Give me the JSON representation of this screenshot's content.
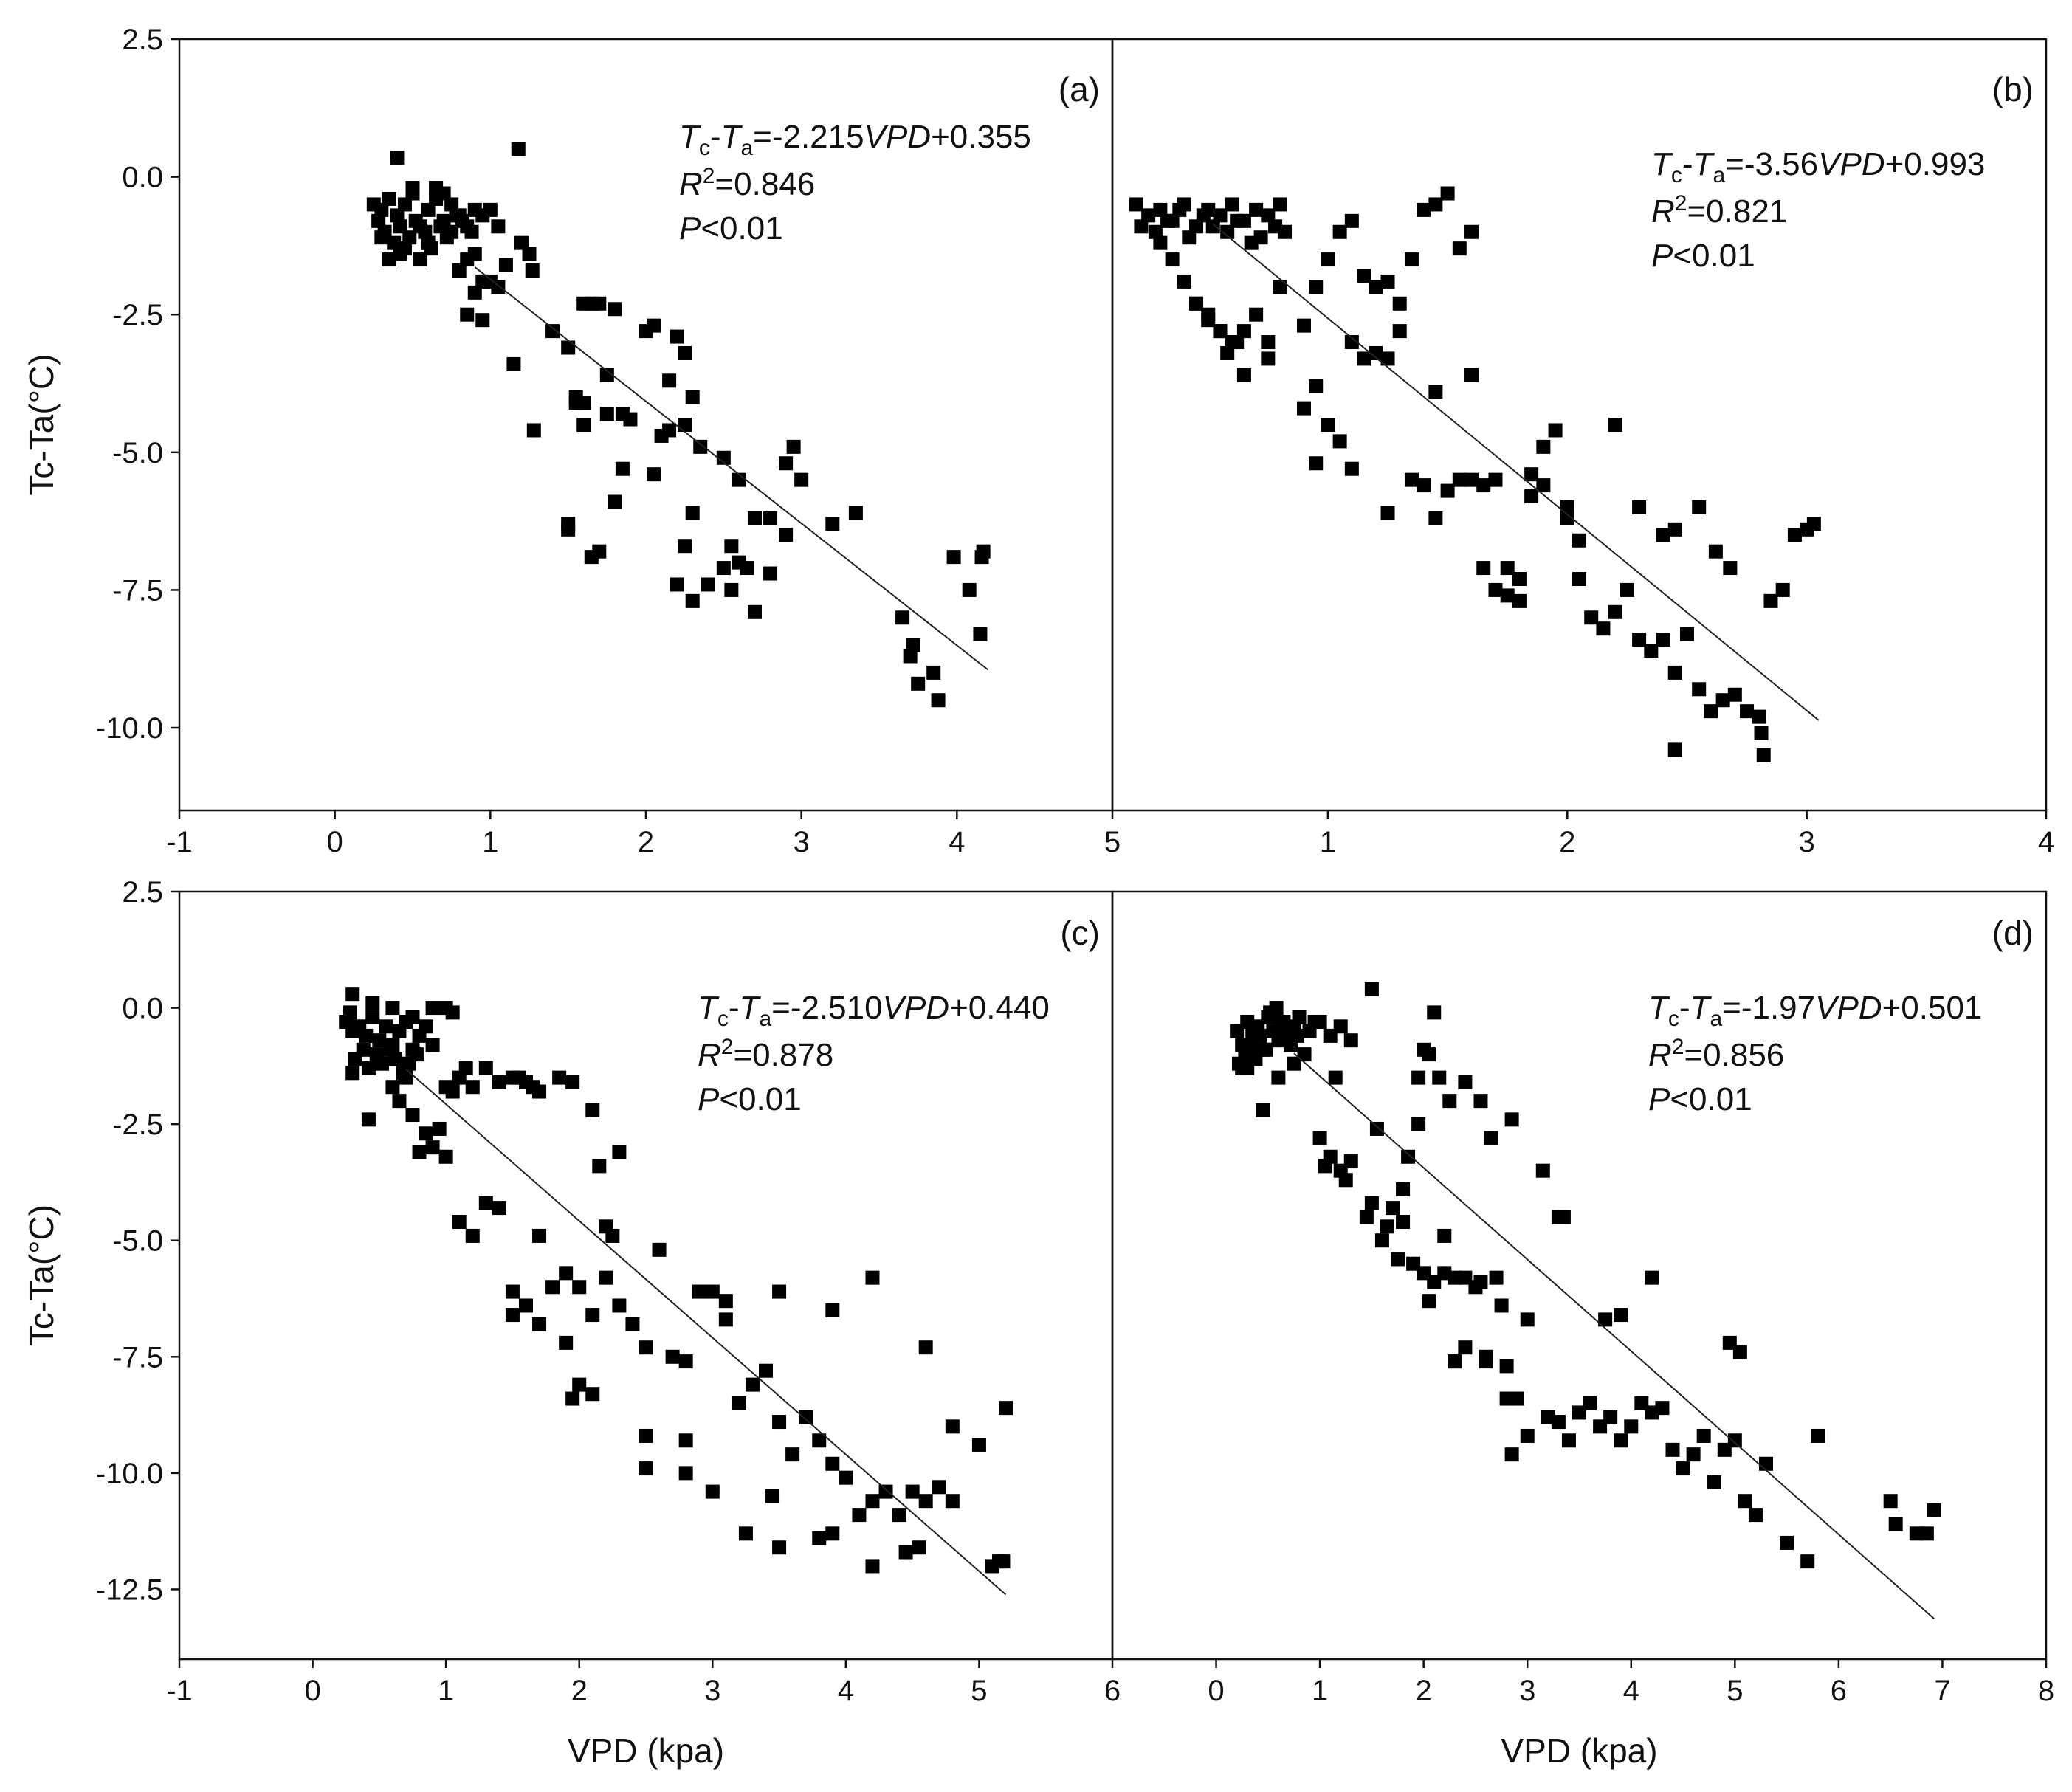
{
  "chart_data": [
    {
      "id": "a",
      "type": "scatter",
      "panel_label": "(a)",
      "equation": {
        "lhs_1": "T",
        "lhs_1_sub": "c",
        "minus": "-",
        "lhs_2": "T",
        "lhs_2_sub": "a",
        "rhs_1": "=-2.215",
        "rhs_var": "VPD",
        "rhs_2": "+0.355"
      },
      "r2": {
        "r": "R",
        "sup": "2",
        "value": "=0.846"
      },
      "p": {
        "p": "P",
        "value": "<0.01"
      },
      "xlim": [
        -1,
        5
      ],
      "ylim": [
        -11.5,
        2.5
      ],
      "xticks": [
        "-1",
        "0",
        "1",
        "2",
        "3",
        "4",
        "5"
      ],
      "yticks": [
        "2.5",
        "0.0",
        "-2.5",
        "-5.0",
        "-7.5",
        "-10.0"
      ],
      "fit": {
        "slope": -2.215,
        "intercept": 0.355,
        "x_range": [
          0.9,
          4.2
        ]
      },
      "x": [
        0.25,
        0.3,
        0.28,
        0.35,
        0.4,
        0.45,
        0.5,
        0.55,
        0.6,
        0.65,
        0.7,
        0.75,
        0.8,
        0.85,
        0.9,
        0.32,
        0.38,
        0.42,
        0.48,
        0.52,
        0.58,
        0.62,
        0.68,
        0.72,
        0.78,
        0.82,
        0.88,
        0.95,
        1.0,
        1.05,
        0.3,
        0.45,
        0.6,
        0.75,
        0.9,
        0.55,
        0.65,
        0.7,
        0.5,
        0.4,
        0.35,
        0.85,
        0.95,
        1.1,
        1.2,
        1.25,
        1.27,
        0.42,
        0.6,
        1.18,
        0.8,
        0.85,
        0.9,
        0.95,
        1.0,
        1.05,
        1.15,
        1.28,
        1.4,
        1.5,
        1.6,
        1.65,
        1.7,
        1.75,
        1.8,
        1.85,
        1.9,
        2.0,
        2.05,
        2.1,
        2.15,
        2.2,
        2.25,
        2.3,
        2.35,
        2.5,
        2.6,
        2.7,
        2.8,
        2.9,
        2.95,
        3.0,
        1.5,
        1.55,
        1.6,
        1.65,
        1.7,
        1.8,
        2.2,
        2.25,
        2.3,
        2.4,
        2.5,
        2.55,
        2.6,
        2.7,
        2.8,
        2.9,
        3.2,
        3.35,
        3.65,
        3.72,
        3.75,
        3.7,
        3.85,
        3.88,
        3.98,
        4.08,
        4.15,
        4.17,
        4.16,
        1.55,
        1.75,
        1.85,
        2.05,
        2.3,
        2.55,
        2.65,
        1.5,
        1.6,
        2.15,
        2.25
      ],
      "y": [
        -0.5,
        -0.6,
        -0.8,
        -0.4,
        -0.7,
        -0.5,
        -0.3,
        -0.9,
        -0.6,
        -0.4,
        -0.8,
        -0.5,
        -0.7,
        -0.9,
        -0.6,
        -1.0,
        -1.2,
        -0.9,
        -1.1,
        -0.8,
        -1.0,
        -1.3,
        -0.9,
        -1.1,
        -0.7,
        -0.8,
        -1.0,
        -0.7,
        -0.6,
        -0.9,
        -1.1,
        -1.3,
        -1.2,
        -1.0,
        -1.4,
        -1.5,
        -0.2,
        -0.3,
        -0.2,
        0.35,
        -1.5,
        -1.5,
        -1.9,
        -1.6,
        -1.2,
        -1.4,
        -1.7,
        -1.4,
        -1.2,
        0.5,
        -1.7,
        -2.5,
        -2.1,
        -2.6,
        -1.9,
        -2.0,
        -3.4,
        -4.6,
        -2.8,
        -3.1,
        -2.3,
        -2.3,
        -2.3,
        -3.6,
        -2.4,
        -4.3,
        -4.4,
        -2.8,
        -2.7,
        -4.7,
        -3.7,
        -2.9,
        -4.5,
        -4.0,
        -4.9,
        -5.1,
        -5.5,
        -6.2,
        -6.2,
        -5.2,
        -4.9,
        -5.5,
        -6.3,
        -4.0,
        -4.5,
        -6.9,
        -6.8,
        -5.9,
        -7.4,
        -6.7,
        -7.7,
        -7.4,
        -7.1,
        -7.5,
        -7.0,
        -7.9,
        -7.2,
        -6.5,
        -6.3,
        -6.1,
        -8.0,
        -8.5,
        -9.2,
        -8.7,
        -9.0,
        -9.5,
        -6.9,
        -7.5,
        -8.3,
        -6.8,
        -6.9,
        -4.1,
        -4.3,
        -5.3,
        -5.4,
        -6.1,
        -6.7,
        -7.1,
        -6.4,
        -4.1,
        -4.6,
        -3.2
      ],
      "xlabel": "",
      "ylabel": "Tc-Ta(°C)"
    },
    {
      "id": "b",
      "type": "scatter",
      "panel_label": "(b)",
      "equation": {
        "lhs_1": "T",
        "lhs_1_sub": "c",
        "minus": "-",
        "lhs_2": "T",
        "lhs_2_sub": "a",
        "rhs_1": "=-3.56",
        "rhs_var": "VPD",
        "rhs_2": "+0.993"
      },
      "r2": {
        "r": "R",
        "sup": "2",
        "value": "=0.821"
      },
      "p": {
        "p": "P",
        "value": "<0.01"
      },
      "xlim": [
        0.1,
        4
      ],
      "ylim": [
        -11.5,
        2.5
      ],
      "xticks": [
        "1",
        "2",
        "3",
        "4"
      ],
      "yticks": [],
      "fit": {
        "slope": -3.56,
        "intercept": 0.993,
        "x_range": [
          0.52,
          3.05
        ]
      },
      "x": [
        0.2,
        0.25,
        0.3,
        0.35,
        0.4,
        0.45,
        0.5,
        0.55,
        0.6,
        0.65,
        0.7,
        0.75,
        0.8,
        0.22,
        0.28,
        0.33,
        0.38,
        0.42,
        0.48,
        0.52,
        0.58,
        0.62,
        0.68,
        0.72,
        0.78,
        0.82,
        0.3,
        0.35,
        0.4,
        0.45,
        0.5,
        0.55,
        0.6,
        0.65,
        0.7,
        0.75,
        0.9,
        0.95,
        1.0,
        1.05,
        1.1,
        1.15,
        1.2,
        1.25,
        1.3,
        1.35,
        1.4,
        1.45,
        1.5,
        1.55,
        1.6,
        1.1,
        1.15,
        0.95,
        1.0,
        1.05,
        1.2,
        1.3,
        0.9,
        0.95,
        1.1,
        1.25,
        1.35,
        1.4,
        1.45,
        1.5,
        1.55,
        1.65,
        1.7,
        1.75,
        1.8,
        1.85,
        1.9,
        2.0,
        2.05,
        2.1,
        2.15,
        2.2,
        2.25,
        2.3,
        2.35,
        2.4,
        2.45,
        2.5,
        2.55,
        2.6,
        2.65,
        2.7,
        2.75,
        2.8,
        2.85,
        2.9,
        2.95,
        3.0,
        1.6,
        1.65,
        1.7,
        1.75,
        1.8,
        1.85,
        1.9,
        1.95,
        2.0,
        2.05,
        2.2,
        2.3,
        2.4,
        2.45,
        2.55,
        2.62,
        2.68,
        2.81,
        2.82,
        3.03,
        2.45,
        0.45,
        0.5,
        0.55,
        0.58,
        0.62,
        0.65,
        0.75,
        0.8,
        1.45,
        1.6,
        1.25
      ],
      "y": [
        -0.5,
        -0.7,
        -0.6,
        -0.8,
        -0.5,
        -0.9,
        -0.6,
        -0.7,
        -0.5,
        -0.8,
        -0.6,
        -0.7,
        -0.5,
        -0.9,
        -1.0,
        -0.8,
        -0.6,
        -1.1,
        -0.7,
        -0.9,
        -1.0,
        -0.8,
        -1.2,
        -1.1,
        -0.9,
        -1.0,
        -1.2,
        -1.5,
        -1.9,
        -2.3,
        -2.5,
        -2.8,
        -3.0,
        -3.6,
        -2.5,
        -3.0,
        -2.7,
        -2.0,
        -1.5,
        -1.0,
        -0.8,
        -1.8,
        -2.0,
        -1.9,
        -2.3,
        -1.5,
        -0.6,
        -0.5,
        -0.3,
        -1.3,
        -1.0,
        -3.0,
        -3.3,
        -3.8,
        -4.5,
        -4.8,
        -3.2,
        -2.8,
        -4.2,
        -5.2,
        -5.3,
        -6.1,
        -5.5,
        -5.6,
        -6.2,
        -5.7,
        -5.5,
        -7.1,
        -7.5,
        -7.6,
        -7.3,
        -5.8,
        -5.6,
        -6.0,
        -7.3,
        -8.0,
        -8.2,
        -7.9,
        -7.5,
        -8.4,
        -8.6,
        -8.4,
        -9.0,
        -8.3,
        -9.3,
        -9.7,
        -9.5,
        -9.4,
        -9.7,
        -9.8,
        -7.7,
        -7.5,
        -6.5,
        -6.4,
        -5.5,
        -5.6,
        -5.5,
        -7.1,
        -7.7,
        -5.4,
        -4.9,
        -4.6,
        -6.2,
        -6.6,
        -4.5,
        -6.0,
        -6.5,
        -6.4,
        -6.0,
        -6.8,
        -7.1,
        -10.1,
        -10.5,
        -6.3,
        -10.4,
        -2.3,
        -2.6,
        -2.8,
        -3.2,
        -3.0,
        -2.8,
        -3.3,
        -2.0,
        -3.9,
        -3.6,
        -3.3
      ],
      "xlabel": "",
      "ylabel": ""
    },
    {
      "id": "c",
      "type": "scatter",
      "panel_label": "(c)",
      "equation": {
        "lhs_1": "T",
        "lhs_1_sub": "c",
        "minus": "-",
        "lhs_2": "T",
        "lhs_2_sub": "a",
        "rhs_1": "=-2.510",
        "rhs_var": "VPD",
        "rhs_2": "+0.440"
      },
      "r2": {
        "r": "R",
        "sup": "2",
        "value": "=0.878"
      },
      "p": {
        "p": "P",
        "value": "<0.01"
      },
      "xlim": [
        -1,
        6
      ],
      "ylim": [
        -14,
        2.5
      ],
      "xticks": [
        "-1",
        "0",
        "1",
        "2",
        "3",
        "4",
        "5",
        "6"
      ],
      "yticks": [
        "2.5",
        "0.0",
        "-2.5",
        "-5.0",
        "-7.5",
        "-10.0",
        "-12.5"
      ],
      "fit": {
        "slope": -2.51,
        "intercept": 0.44,
        "x_range": [
          0.7,
          5.2
        ]
      },
      "x": [
        0.25,
        0.3,
        0.28,
        0.35,
        0.4,
        0.45,
        0.5,
        0.55,
        0.6,
        0.65,
        0.7,
        0.75,
        0.8,
        0.85,
        0.9,
        0.32,
        0.38,
        0.42,
        0.48,
        0.52,
        0.58,
        0.62,
        0.68,
        0.72,
        0.78,
        0.3,
        0.45,
        0.6,
        0.75,
        0.9,
        1.0,
        1.05,
        0.7,
        0.65,
        0.3,
        0.42,
        0.6,
        0.75,
        0.8,
        0.85,
        0.9,
        0.95,
        1.0,
        1.05,
        1.1,
        1.15,
        1.2,
        1.3,
        1.4,
        1.5,
        1.55,
        1.6,
        1.65,
        1.7,
        1.85,
        1.95,
        2.1,
        2.15,
        2.2,
        2.25,
        2.3,
        1.0,
        1.1,
        1.2,
        1.3,
        1.4,
        1.5,
        1.6,
        1.7,
        1.8,
        1.9,
        2.0,
        2.1,
        2.2,
        2.3,
        2.4,
        2.5,
        2.6,
        2.7,
        2.8,
        2.9,
        3.0,
        3.1,
        3.2,
        3.3,
        3.4,
        3.5,
        3.6,
        3.7,
        3.8,
        3.9,
        4.0,
        4.1,
        4.2,
        4.3,
        4.4,
        4.5,
        4.6,
        4.7,
        4.8,
        5.0,
        5.1,
        5.2,
        2.5,
        2.8,
        3.0,
        3.25,
        3.5,
        3.45,
        3.8,
        3.9,
        4.2,
        4.45,
        4.55,
        5.15,
        5.18,
        1.95,
        2.1,
        2.5,
        2.8,
        3.1,
        3.5,
        3.9,
        4.2,
        4.6,
        4.8,
        1.5,
        1.7,
        1.9,
        2.0
      ],
      "y": [
        -0.3,
        -0.5,
        -0.1,
        -0.4,
        -0.6,
        -0.2,
        -0.7,
        -0.4,
        -0.8,
        -0.5,
        -0.3,
        -0.9,
        -0.6,
        -0.4,
        -0.8,
        -1.1,
        -0.9,
        -1.3,
        -1.0,
        -1.2,
        -0.9,
        -1.1,
        -1.4,
        -1.2,
        -1.0,
        0.3,
        0.1,
        0.0,
        -0.2,
        0.0,
        0.0,
        -0.1,
        -1.5,
        -2.0,
        -1.4,
        -2.4,
        -1.7,
        -2.3,
        -3.1,
        -2.7,
        -3.0,
        -2.6,
        -1.7,
        -1.8,
        -1.5,
        -1.3,
        -1.7,
        -1.3,
        -1.6,
        -1.5,
        -1.5,
        -1.6,
        -1.7,
        -1.8,
        -1.5,
        -1.6,
        -2.2,
        -3.4,
        -4.7,
        -4.9,
        -3.1,
        -3.2,
        -4.6,
        -4.9,
        -4.2,
        -4.3,
        -6.6,
        -6.4,
        -4.9,
        -6.0,
        -5.7,
        -6.0,
        -6.6,
        -5.8,
        -6.4,
        -6.8,
        -7.3,
        -5.2,
        -7.5,
        -7.6,
        -6.1,
        -6.1,
        -6.7,
        -8.5,
        -8.1,
        -7.8,
        -8.9,
        -9.6,
        -8.8,
        -9.3,
        -9.8,
        -10.1,
        -10.9,
        -10.6,
        -10.4,
        -10.9,
        -10.4,
        -10.6,
        -10.3,
        -10.6,
        -9.4,
        -12.0,
        -8.6,
        -9.9,
        -10.0,
        -10.4,
        -11.3,
        -11.6,
        -10.5,
        -11.4,
        -11.3,
        -12.0,
        -11.7,
        -11.6,
        -11.9,
        -11.9,
        -8.4,
        -8.3,
        -9.2,
        -9.3,
        -6.3,
        -6.1,
        -6.5,
        -5.8,
        -7.3,
        -9.0,
        -6.1,
        -6.8,
        -7.2,
        -8.1
      ],
      "xlabel": "VPD (kpa)",
      "ylabel": "Tc-Ta(°C)"
    },
    {
      "id": "d",
      "type": "scatter",
      "panel_label": "(d)",
      "equation": {
        "lhs_1": "T",
        "lhs_1_sub": "c",
        "minus": "-",
        "lhs_2": "T",
        "lhs_2_sub": "a",
        "rhs_1": "=-1.97",
        "rhs_var": "VPD",
        "rhs_2": "+0.501"
      },
      "r2": {
        "r": "R",
        "sup": "2",
        "value": "=0.856"
      },
      "p": {
        "p": "P",
        "value": "<0.01"
      },
      "xlim": [
        -1,
        8
      ],
      "ylim": [
        -14,
        2.5
      ],
      "xticks": [
        "0",
        "1",
        "2",
        "3",
        "4",
        "5",
        "6",
        "7",
        "8"
      ],
      "yticks": [],
      "fit": {
        "slope": -1.97,
        "intercept": 0.501,
        "x_range": [
          0.75,
          6.92
        ]
      },
      "x": [
        0.2,
        0.25,
        0.3,
        0.35,
        0.4,
        0.45,
        0.5,
        0.55,
        0.6,
        0.65,
        0.7,
        0.75,
        0.8,
        0.9,
        1.0,
        1.1,
        1.2,
        1.3,
        0.22,
        0.28,
        0.33,
        0.38,
        0.42,
        0.48,
        0.52,
        0.58,
        0.62,
        0.68,
        0.72,
        0.78,
        0.85,
        0.95,
        0.3,
        0.45,
        0.6,
        0.75,
        0.25,
        1.0,
        1.05,
        1.1,
        1.15,
        1.2,
        1.25,
        1.3,
        1.45,
        1.5,
        1.55,
        1.65,
        1.8,
        1.85,
        1.95,
        2.0,
        2.05,
        2.1,
        2.15,
        2.2,
        2.3,
        2.4,
        2.5,
        2.55,
        2.6,
        2.7,
        2.75,
        2.8,
        2.85,
        2.9,
        3.0,
        1.7,
        1.8,
        1.9,
        2.0,
        2.1,
        2.2,
        2.3,
        2.4,
        2.6,
        2.8,
        3.0,
        3.2,
        3.3,
        3.4,
        3.5,
        3.6,
        3.7,
        3.8,
        3.9,
        4.0,
        4.1,
        4.2,
        4.3,
        4.4,
        4.5,
        4.6,
        4.7,
        4.8,
        4.9,
        5.0,
        5.1,
        5.2,
        5.3,
        5.5,
        5.7,
        5.8,
        6.5,
        6.55,
        6.75,
        6.85,
        6.92,
        4.2,
        3.75,
        3.9,
        4.95,
        5.05,
        3.3,
        3.35,
        3.15,
        1.5,
        1.95,
        2.25,
        2.4,
        2.55,
        2.65,
        2.85,
        1.6,
        1.75,
        2.05,
        2.3
      ],
      "y": [
        -0.5,
        -0.8,
        -0.3,
        -0.6,
        -0.4,
        -0.9,
        -0.2,
        -0.5,
        -0.7,
        -0.3,
        -0.6,
        -0.4,
        -0.2,
        -0.5,
        -0.3,
        -0.6,
        -0.4,
        -0.7,
        -1.2,
        -1.0,
        -0.8,
        -1.1,
        -0.6,
        -0.9,
        -0.1,
        0.0,
        -0.3,
        -0.5,
        -0.8,
        -0.6,
        -1.0,
        -0.3,
        -1.3,
        -2.2,
        -1.5,
        -1.2,
        -1.3,
        -2.8,
        -3.4,
        -3.2,
        -1.5,
        -3.5,
        -3.7,
        -3.3,
        -4.5,
        -4.2,
        -2.6,
        -4.7,
        -3.9,
        -3.2,
        -2.5,
        -0.9,
        -1.0,
        -0.1,
        -1.5,
        -4.9,
        -5.8,
        -5.8,
        -6.0,
        -5.9,
        -7.5,
        -5.8,
        -6.4,
        -7.7,
        -9.6,
        -8.4,
        -6.7,
        -4.3,
        -4.6,
        -5.5,
        -5.7,
        -5.9,
        -5.7,
        -7.6,
        -7.3,
        -7.6,
        -8.4,
        -9.2,
        -8.8,
        -8.9,
        -9.3,
        -8.7,
        -8.5,
        -9.0,
        -8.8,
        -9.3,
        -9.0,
        -8.5,
        -8.7,
        -8.6,
        -9.5,
        -9.9,
        -9.6,
        -9.2,
        -10.2,
        -9.5,
        -9.3,
        -10.6,
        -10.9,
        -9.8,
        -11.5,
        -11.9,
        -9.2,
        -10.6,
        -11.1,
        -11.3,
        -11.3,
        -10.8,
        -5.8,
        -6.7,
        -6.6,
        -7.2,
        -7.4,
        -4.5,
        -4.5,
        -3.5,
        0.4,
        -1.5,
        -2.0,
        -1.6,
        -2.0,
        -2.8,
        -2.4,
        -5.0,
        -5.4,
        -6.3,
        -7.6
      ],
      "xlabel": "VPD (kpa)",
      "ylabel": ""
    }
  ]
}
